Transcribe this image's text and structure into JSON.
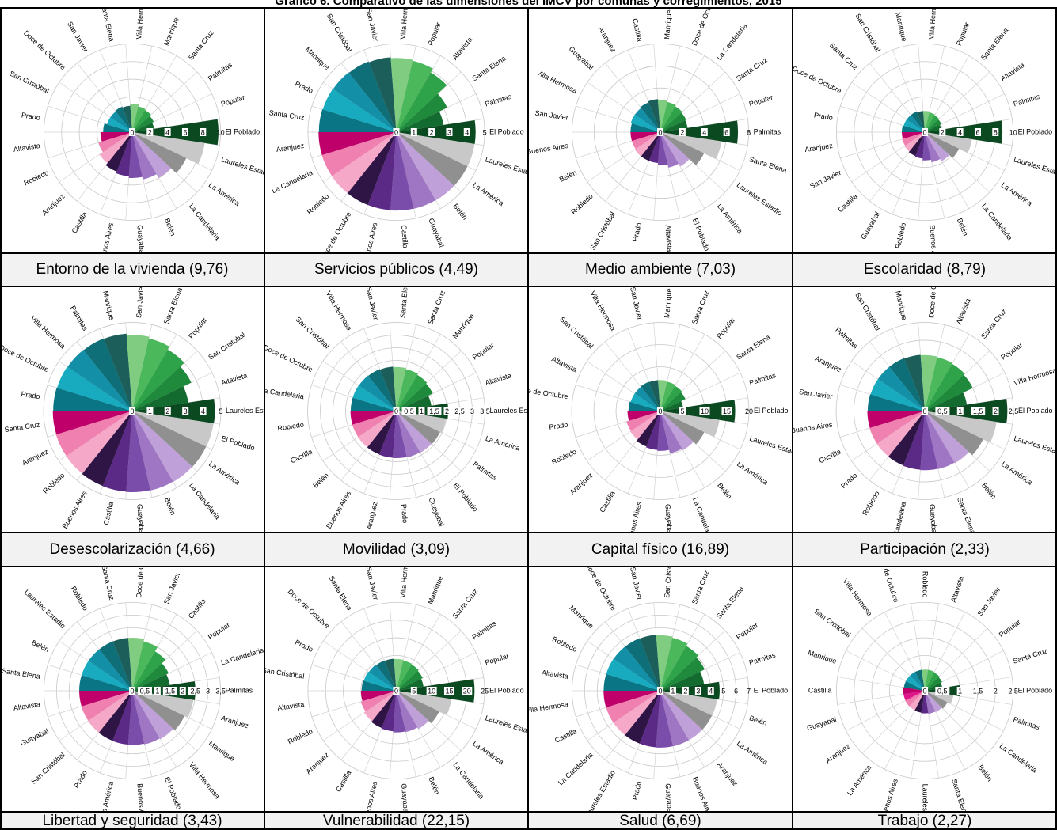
{
  "title": "Gráfico 6. Comparativo de las dimensiones del IMCV por comunas y corregimientos, 2015",
  "palette": [
    "#2e1545",
    "#5b2a86",
    "#7b4dab",
    "#9e76c4",
    "#bfa0d8",
    "#909090",
    "#c8c8c8",
    "#0b4a21",
    "#146b30",
    "#1f8a3c",
    "#2fa34a",
    "#4cb85c",
    "#80cc80",
    "#1b5e5a",
    "#0e6f78",
    "#1390a8",
    "#18abc0",
    "#0a7585",
    "#bf006a",
    "#e0178a",
    "#f080b0",
    "#f5a8c8"
  ],
  "chart_data": [
    {
      "type": "polar-bar",
      "caption": "Entorno de la vivienda (9,76)",
      "rmax": 10,
      "ticks": [
        0,
        2,
        4,
        6,
        8,
        10
      ],
      "categories": [
        "El Poblado",
        "Laureles Estadio",
        "La América",
        "La Candelaria",
        "Belén",
        "Guayabal",
        "Buenos Aires",
        "Castilla",
        "Aranjuez",
        "Robledo",
        "Altavista",
        "Prado",
        "San Cristóbal",
        "Doce de Octubre",
        "San Javier",
        "Santa Elena",
        "Villa Hermosa",
        "Manrique",
        "Santa Cruz",
        "Palmitas",
        "Popular"
      ],
      "values": [
        9.76,
        8.3,
        6.8,
        6.0,
        5.5,
        5.2,
        5.0,
        4.8,
        4.5,
        4.0,
        3.6,
        3.3,
        3.0,
        3.0,
        3.1,
        3.0,
        3.2,
        3.0,
        2.9,
        2.7,
        2.5
      ]
    },
    {
      "type": "polar-bar",
      "caption": "Servicios públicos (4,49)",
      "rmax": 5,
      "ticks": [
        0,
        1,
        2,
        3,
        4,
        5
      ],
      "categories": [
        "El Poblado",
        "Laureles Estadio",
        "La América",
        "Belén",
        "Guayabal",
        "Castilla",
        "Buenos Aires",
        "Doce de Octubre",
        "Robledo",
        "La Candelaria",
        "Aranjuez",
        "Santa Cruz",
        "Prado",
        "Manrique",
        "San Cristóbal",
        "San Javier",
        "Villa Hermosa",
        "Popular",
        "Altavista",
        "Santa Elena",
        "Palmitas"
      ],
      "values": [
        4.49,
        4.48,
        4.47,
        4.46,
        4.45,
        4.44,
        4.43,
        4.43,
        4.42,
        4.41,
        4.4,
        4.38,
        4.35,
        4.33,
        4.3,
        4.25,
        4.2,
        4.15,
        3.9,
        3.2,
        2.7
      ]
    },
    {
      "type": "polar-bar",
      "caption": "Medio ambiente (7,03)",
      "rmax": 8,
      "ticks": [
        0,
        2,
        4,
        6,
        8
      ],
      "categories": [
        "Palmitas",
        "Santa Elena",
        "Laureles Estadio",
        "La América",
        "El Poblado",
        "Altavista",
        "Prado",
        "San Cristóbal",
        "Robledo",
        "Belén",
        "Buenos Aires",
        "San Javier",
        "Villa Hermosa",
        "Guayabal",
        "Aranjuez",
        "Castilla",
        "Manrique",
        "Doce de Octubre",
        "La Candelaria",
        "Santa Cruz",
        "Popular"
      ],
      "values": [
        7.03,
        5.6,
        4.4,
        3.6,
        3.3,
        3.0,
        2.8,
        2.8,
        2.8,
        2.7,
        2.7,
        2.7,
        2.8,
        2.8,
        2.9,
        3.0,
        2.9,
        2.8,
        2.7,
        2.6,
        2.5
      ]
    },
    {
      "type": "polar-bar",
      "caption": "Escolaridad (8,79)",
      "rmax": 10,
      "ticks": [
        0,
        2,
        4,
        6,
        8,
        10
      ],
      "categories": [
        "El Poblado",
        "Laureles Estadio",
        "La América",
        "La Candelaria",
        "Belén",
        "Buenos Aires",
        "Robledo",
        "Guayabal",
        "Castilla",
        "San Javier",
        "Aranjuez",
        "Prado",
        "Doce de Octubre",
        "Santa Cruz",
        "San Cristóbal",
        "Manrique",
        "Villa Hermosa",
        "Popular",
        "Santa Elena",
        "Altavista",
        "Palmitas"
      ],
      "values": [
        8.79,
        5.4,
        4.3,
        3.8,
        3.5,
        3.2,
        3.0,
        2.9,
        2.8,
        2.7,
        2.6,
        2.6,
        2.5,
        2.5,
        2.5,
        2.4,
        2.4,
        2.3,
        2.2,
        2.1,
        1.9
      ]
    },
    {
      "type": "polar-bar",
      "caption": "Desescolarización (4,66)",
      "rmax": 5,
      "ticks": [
        0,
        1,
        2,
        3,
        4,
        5
      ],
      "categories": [
        "Laureles Estadio",
        "El Poblado",
        "La América",
        "La Candelaria",
        "Belén",
        "Guayabal",
        "Castilla",
        "Buenos Aires",
        "Robledo",
        "Aranjuez",
        "Santa Cruz",
        "Prado",
        "Doce de Octubre",
        "Villa Hermosa",
        "Palmitas",
        "Manrique",
        "San Javier",
        "Santa Elena",
        "Popular",
        "San Cristóbal",
        "Altavista"
      ],
      "values": [
        4.66,
        4.64,
        4.63,
        4.62,
        4.6,
        4.58,
        4.56,
        4.54,
        4.52,
        4.5,
        4.48,
        4.46,
        4.44,
        4.42,
        4.4,
        4.38,
        4.3,
        4.2,
        4.0,
        3.7,
        3.2
      ]
    },
    {
      "type": "polar-bar",
      "caption": "Movilidad (3,09)",
      "rmax": 3.5,
      "ticks": [
        0,
        0.5,
        1,
        1.5,
        2,
        2.5,
        3,
        3.5
      ],
      "categories": [
        "Laureles Estadio",
        "La América",
        "Palmitas",
        "El Poblado",
        "Guayabal",
        "Prado",
        "Aranjuez",
        "Buenos Aires",
        "Belén",
        "Castilla",
        "Robledo",
        "La Candelaria",
        "Doce de Octubre",
        "San Cristóbal",
        "Villa Hermosa",
        "San Javier",
        "Santa Elena",
        "Santa Cruz",
        "Manrique",
        "Popular",
        "Altavista"
      ],
      "values": [
        2.05,
        1.98,
        1.92,
        1.9,
        1.88,
        1.86,
        1.85,
        1.84,
        1.83,
        1.82,
        1.81,
        1.8,
        1.8,
        1.79,
        1.78,
        1.76,
        1.74,
        1.7,
        1.65,
        1.6,
        1.4
      ]
    },
    {
      "type": "polar-bar",
      "caption": "Capital físico (16,89)",
      "rmax": 20,
      "ticks": [
        0,
        5,
        10,
        15,
        20
      ],
      "categories": [
        "El Poblado",
        "Laureles Estadio",
        "La América",
        "Belén",
        "La Candelaria",
        "Guayabal",
        "Buenos Aires",
        "Castilla",
        "Aranjuez",
        "Robledo",
        "Prado",
        "Doce de Octubre",
        "Altavista",
        "San Cristóbal",
        "Villa Hermosa",
        "San Javier",
        "Manrique",
        "Santa Cruz",
        "Popular",
        "Santa Elena",
        "Palmitas"
      ],
      "values": [
        16.89,
        13.5,
        11.0,
        10.2,
        9.8,
        9.0,
        8.8,
        8.6,
        8.2,
        8.0,
        7.4,
        7.2,
        7.0,
        7.0,
        7.1,
        7.0,
        7.0,
        6.8,
        6.6,
        6.3,
        5.2
      ]
    },
    {
      "type": "polar-bar",
      "caption": "Participación (2,33)",
      "rmax": 2.5,
      "ticks": [
        0,
        0.5,
        1,
        1.5,
        2,
        2.5
      ],
      "categories": [
        "El Poblado",
        "Laureles Estadio",
        "La América",
        "Belén",
        "Santa Elena",
        "Guayabal",
        "La Candelaria",
        "Robledo",
        "Prado",
        "Castilla",
        "Buenos Aires",
        "San Javier",
        "Aranjuez",
        "Palmitas",
        "San Cristóbal",
        "Manrique",
        "Doce de Octubre",
        "Altavista",
        "Santa Cruz",
        "Popular",
        "Villa Hermosa"
      ],
      "values": [
        2.33,
        2.05,
        1.83,
        1.7,
        1.68,
        1.67,
        1.66,
        1.65,
        1.64,
        1.63,
        1.62,
        1.61,
        1.6,
        1.6,
        1.6,
        1.59,
        1.58,
        1.56,
        1.54,
        1.5,
        1.2
      ]
    },
    {
      "type": "polar-bar",
      "caption": "Libertad y seguridad (3,43)",
      "rmax": 3.5,
      "ticks": [
        0,
        0.5,
        1,
        1.5,
        2,
        2.5,
        3,
        3.5
      ],
      "categories": [
        "Palmitas",
        "Aranjuez",
        "Manrique",
        "Villa Hermosa",
        "El Poblado",
        "Buenos Aires",
        "La América",
        "Prado",
        "San Cristóbal",
        "Guayabal",
        "Altavista",
        "Santa Elena",
        "Belén",
        "Laureles Estadio",
        "Robledo",
        "Santa Cruz",
        "Doce de Octubre",
        "San Javier",
        "Castilla",
        "Popular",
        "La Candelaria"
      ],
      "values": [
        2.5,
        2.45,
        2.3,
        2.22,
        2.18,
        2.15,
        2.14,
        2.13,
        2.12,
        2.11,
        2.1,
        2.1,
        2.1,
        2.1,
        2.1,
        2.1,
        2.1,
        2.0,
        1.8,
        1.6,
        1.5
      ]
    },
    {
      "type": "polar-bar",
      "caption": "Vulnerabilidad (22,15)",
      "rmax": 25,
      "ticks": [
        0,
        5,
        10,
        15,
        20,
        25
      ],
      "categories": [
        "El Poblado",
        "Laureles Estadio",
        "La América",
        "La Candelaria",
        "Belén",
        "Guayabal",
        "Buenos Aires",
        "Castilla",
        "Aranjuez",
        "Robledo",
        "Altavista",
        "San Cristóbal",
        "Prado",
        "Doce de Octubre",
        "Santa Elena",
        "San Javier",
        "Villa Hermosa",
        "Manrique",
        "Santa Cruz",
        "Palmitas",
        "Popular"
      ],
      "values": [
        22.15,
        15.8,
        13.5,
        12.5,
        12.0,
        11.8,
        11.5,
        11.3,
        11.0,
        10.5,
        10.0,
        9.8,
        9.6,
        9.4,
        9.2,
        9.1,
        9.0,
        8.8,
        8.6,
        8.3,
        7.8
      ]
    },
    {
      "type": "polar-bar",
      "caption": "Salud (6,69)",
      "rmax": 7,
      "ticks": [
        0,
        1,
        2,
        3,
        4,
        5,
        6,
        7
      ],
      "categories": [
        "El Poblado",
        "Belén",
        "La América",
        "Aranjuez",
        "Buenos Aires",
        "Guayabal",
        "Prado",
        "Laureles Estadio",
        "La Candelaria",
        "Castilla",
        "Villa Hermosa",
        "Altavista",
        "Robledo",
        "Manrique",
        "Doce de Octubre",
        "San Javier",
        "San Cristóbal",
        "Santa Cruz",
        "Santa Elena",
        "Popular",
        "Palmitas"
      ],
      "values": [
        4.7,
        4.55,
        4.54,
        4.53,
        4.52,
        4.51,
        4.5,
        4.5,
        4.5,
        4.5,
        4.5,
        4.49,
        4.49,
        4.48,
        4.47,
        4.45,
        4.4,
        4.3,
        4.1,
        3.9,
        3.5
      ]
    },
    {
      "type": "polar-bar",
      "caption": "Trabajo (2,27)",
      "rmax": 2.5,
      "ticks": [
        0,
        0.5,
        1,
        1.5,
        2,
        2.5
      ],
      "categories": [
        "El Poblado",
        "Palmitas",
        "La Candelaria",
        "Belén",
        "Santa Elena",
        "Laureles Estadio",
        "Buenos Aires",
        "La América",
        "Aranjuez",
        "Guayabal",
        "Castilla",
        "Manrique",
        "San Cristóbal",
        "Villa Hermosa",
        "Doce de Octubre",
        "Robledo",
        "Altavista",
        "San Javier",
        "Popular",
        "Santa Cruz"
      ],
      "values": [
        1.0,
        0.82,
        0.72,
        0.68,
        0.66,
        0.64,
        0.63,
        0.62,
        0.62,
        0.61,
        0.61,
        0.6,
        0.6,
        0.6,
        0.6,
        0.6,
        0.6,
        0.58,
        0.55,
        0.5
      ]
    }
  ]
}
